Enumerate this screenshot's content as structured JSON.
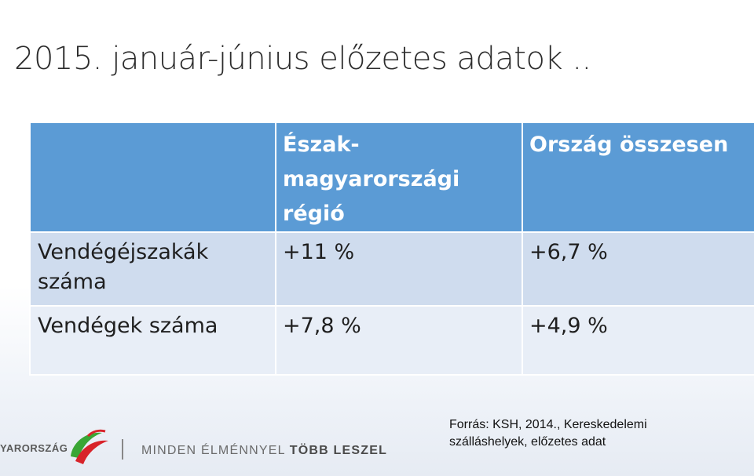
{
  "title": "2015. január-június előzetes adatok ..",
  "table": {
    "header": {
      "col1": "",
      "col2": [
        "Észak-",
        "magyarországi",
        "régió"
      ],
      "col3": "Ország összesen"
    },
    "rows": [
      {
        "label": [
          "Vendégéjszakák",
          "száma"
        ],
        "region": "+11 %",
        "country": "+6,7 %"
      },
      {
        "label": [
          "Vendégek száma"
        ],
        "region": "+7,8 %",
        "country": "+4,9 %"
      }
    ]
  },
  "source": {
    "line1": "Forrás: KSH, 2014., Kereskedelemi",
    "line2": "szálláshelyek, előzetes adat"
  },
  "logo": {
    "brand": "YARORSZÁG",
    "slogan_light": "MINDEN ÉLMÉNNYEL",
    "slogan_bold": "TÖBB LESZEL"
  },
  "colors": {
    "header_blue": "#5b9bd5",
    "row1": "#cfdcee",
    "row2": "#e8eef7",
    "logo_red": "#d8232a",
    "logo_green": "#3aa635"
  }
}
